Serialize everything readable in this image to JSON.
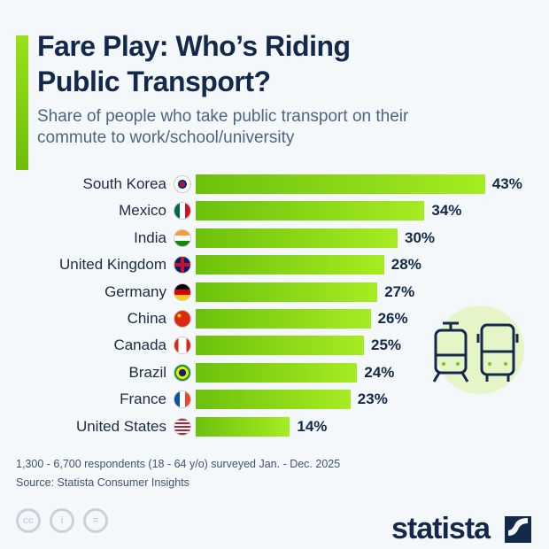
{
  "title_line1": "Fare Play: Who’s Riding",
  "title_line2": "Public Transport?",
  "subtitle_line1": "Share of people who take public transport on their",
  "subtitle_line2": "commute to work/school/university",
  "colors": {
    "bar": "#8fd916",
    "accent": "#80d010",
    "title": "#13294b"
  },
  "chart_data": {
    "type": "bar",
    "orientation": "horizontal",
    "categories": [
      "South Korea",
      "Mexico",
      "India",
      "United Kingdom",
      "Germany",
      "China",
      "Canada",
      "Brazil",
      "France",
      "United States"
    ],
    "values": [
      43,
      34,
      30,
      28,
      27,
      26,
      25,
      24,
      23,
      14
    ],
    "value_labels": [
      "43%",
      "34%",
      "30%",
      "28%",
      "27%",
      "26%",
      "25%",
      "24%",
      "23%",
      "14%"
    ],
    "unit": "%"
  },
  "footnote": "1,300 - 6,700 respondents (18 - 64 y/o) surveyed Jan. - Dec. 2025",
  "source": "Source: Statista Consumer Insights",
  "brand": "statista",
  "icons": [
    "cc-icon",
    "by-icon",
    "nd-icon",
    "tram-icon",
    "bus-icon"
  ]
}
